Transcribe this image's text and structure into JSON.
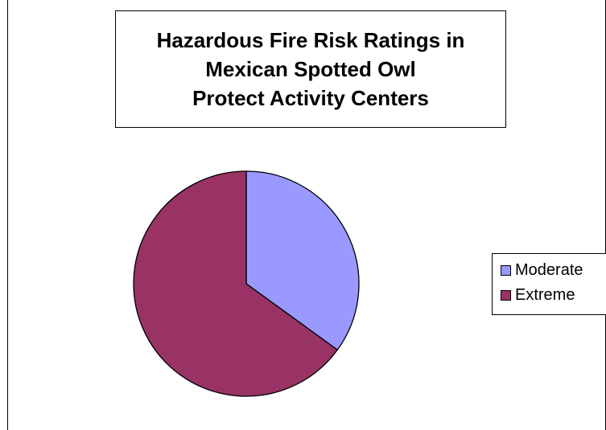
{
  "chart_data": {
    "type": "pie",
    "title_lines": [
      "Hazardous Fire Risk Ratings in",
      "Mexican Spotted Owl",
      "Protect Activity Centers"
    ],
    "categories": [
      "Moderate",
      "Extreme"
    ],
    "values": [
      35,
      65
    ],
    "colors": [
      "#9999ff",
      "#993366"
    ],
    "start_angle": "12 o'clock, clockwise",
    "legend_position": "right",
    "slice_border_color": "#000000"
  }
}
